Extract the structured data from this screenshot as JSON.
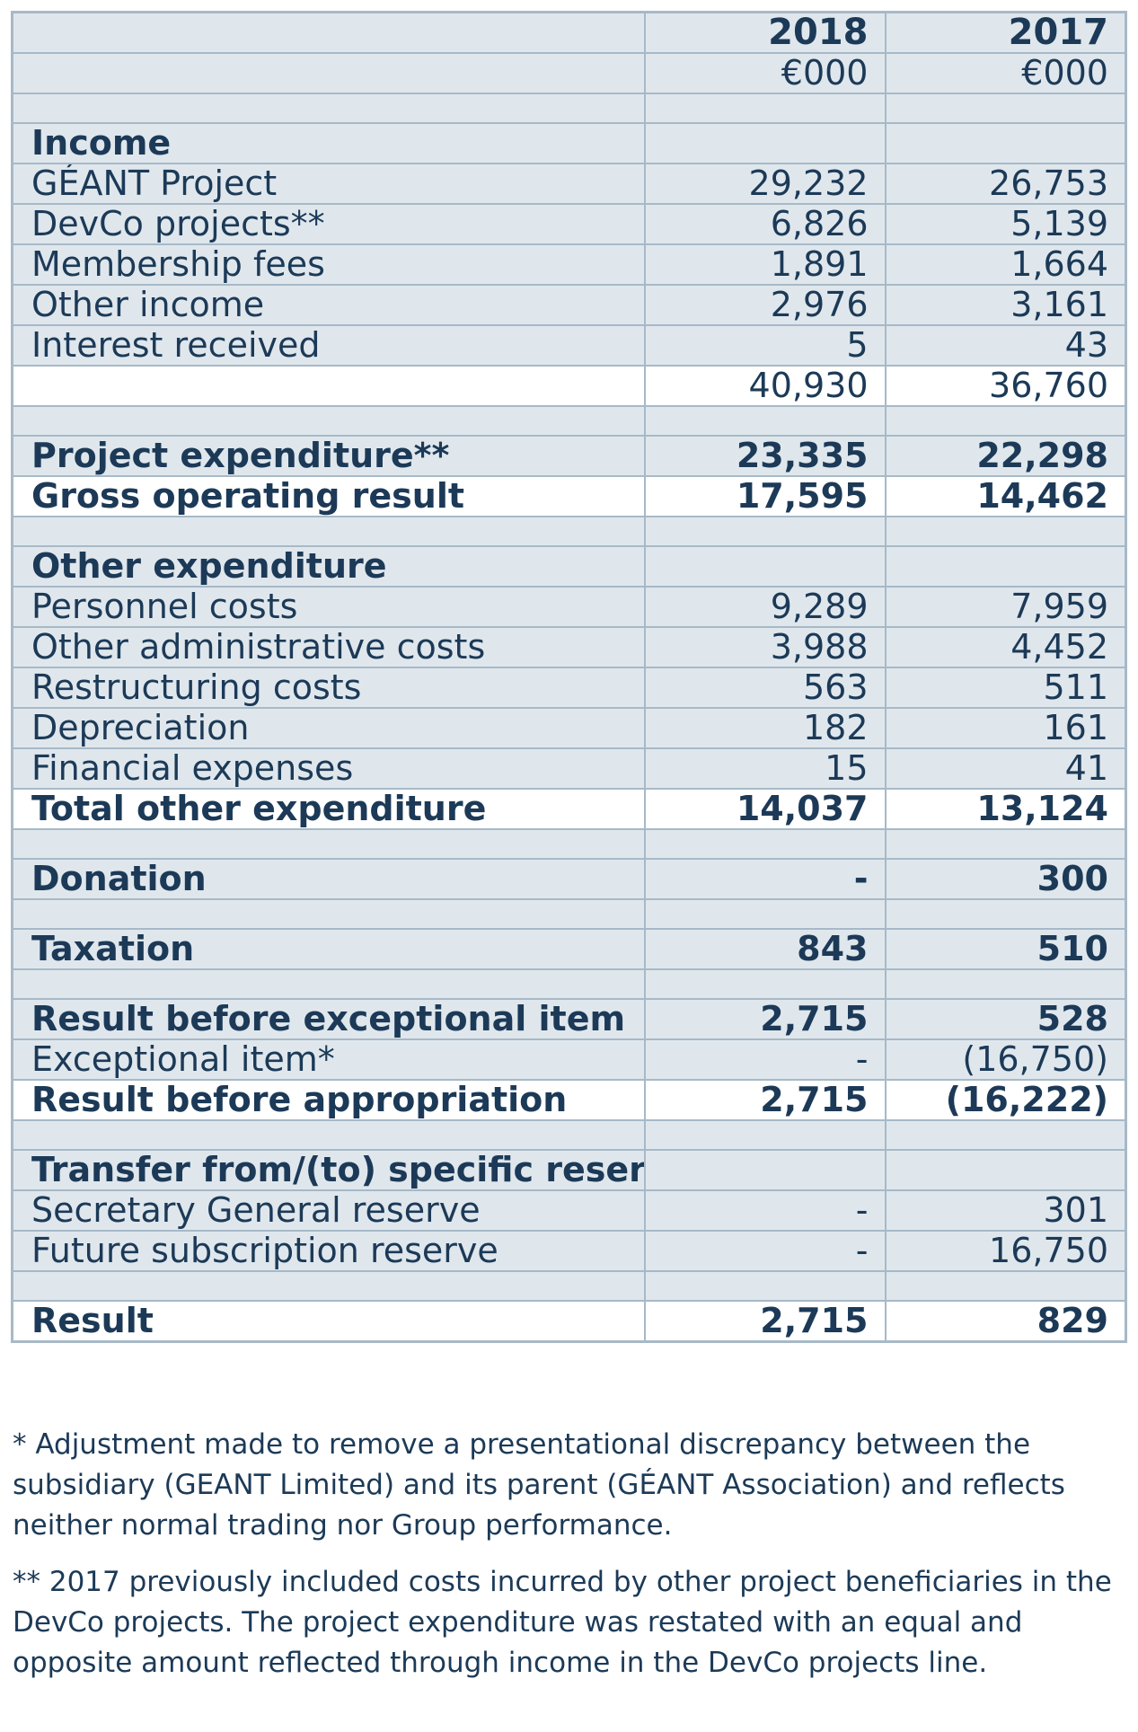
{
  "header": {
    "years": [
      "2018",
      "2017"
    ],
    "units": [
      "€000",
      "€000"
    ]
  },
  "rows": [
    {
      "type": "section",
      "label": "Income",
      "v2018": "",
      "v2017": ""
    },
    {
      "type": "line",
      "label": "GÉANT Project",
      "v2018": "29,232",
      "v2017": "26,753"
    },
    {
      "type": "line",
      "label": "DevCo projects**",
      "v2018": "6,826",
      "v2017": "5,139"
    },
    {
      "type": "line",
      "label": "Membership fees",
      "v2018": "1,891",
      "v2017": "1,664"
    },
    {
      "type": "line",
      "label": "Other income",
      "v2018": "2,976",
      "v2017": "3,161"
    },
    {
      "type": "line",
      "label": "Interest received",
      "v2018": "5",
      "v2017": "43"
    },
    {
      "type": "subtotal",
      "label": "",
      "v2018": "40,930",
      "v2017": "36,760"
    },
    {
      "type": "bold",
      "label": "Project expenditure**",
      "v2018": "23,335",
      "v2017": "22,298"
    },
    {
      "type": "total",
      "label": "Gross operating result",
      "v2018": "17,595",
      "v2017": "14,462"
    },
    {
      "type": "section",
      "label": "Other expenditure",
      "v2018": "",
      "v2017": ""
    },
    {
      "type": "line",
      "label": "Personnel costs",
      "v2018": "9,289",
      "v2017": "7,959"
    },
    {
      "type": "line",
      "label": "Other administrative costs",
      "v2018": "3,988",
      "v2017": "4,452"
    },
    {
      "type": "line",
      "label": "Restructuring costs",
      "v2018": "563",
      "v2017": "511"
    },
    {
      "type": "line",
      "label": "Depreciation",
      "v2018": "182",
      "v2017": "161"
    },
    {
      "type": "line",
      "label": "Financial expenses",
      "v2018": "15",
      "v2017": "41"
    },
    {
      "type": "total",
      "label": "Total other expenditure",
      "v2018": "14,037",
      "v2017": "13,124"
    },
    {
      "type": "bold",
      "label": "Donation",
      "v2018": "-",
      "v2017": "300"
    },
    {
      "type": "bold",
      "label": "Taxation",
      "v2018": "843",
      "v2017": "510"
    },
    {
      "type": "bold",
      "label": "Result before exceptional item",
      "v2018": "2,715",
      "v2017": "528"
    },
    {
      "type": "line",
      "label": "Exceptional item*",
      "v2018": "-",
      "v2017": "(16,750)"
    },
    {
      "type": "total",
      "label": "Result before appropriation",
      "v2018": "2,715",
      "v2017": "(16,222)"
    },
    {
      "type": "section",
      "label": "Transfer from/(to) specific reserve",
      "v2018": "",
      "v2017": ""
    },
    {
      "type": "line",
      "label": "Secretary General reserve",
      "v2018": "-",
      "v2017": "301"
    },
    {
      "type": "line",
      "label": "Future subscription reserve",
      "v2018": "-",
      "v2017": "16,750"
    },
    {
      "type": "total",
      "label": "Result",
      "v2018": "2,715",
      "v2017": "829"
    }
  ],
  "notes": {
    "note1": "* Adjustment made to remove a presentational discrepancy between the subsidiary (GEANT Limited) and its parent (GÉANT Association) and reflects neither normal trading nor Group performance.",
    "note2": "** 2017 previously included costs incurred by other project beneficiaries in the DevCo projects. The project expenditure was restated with an equal and opposite amount reflected through income in the DevCo projects line."
  }
}
